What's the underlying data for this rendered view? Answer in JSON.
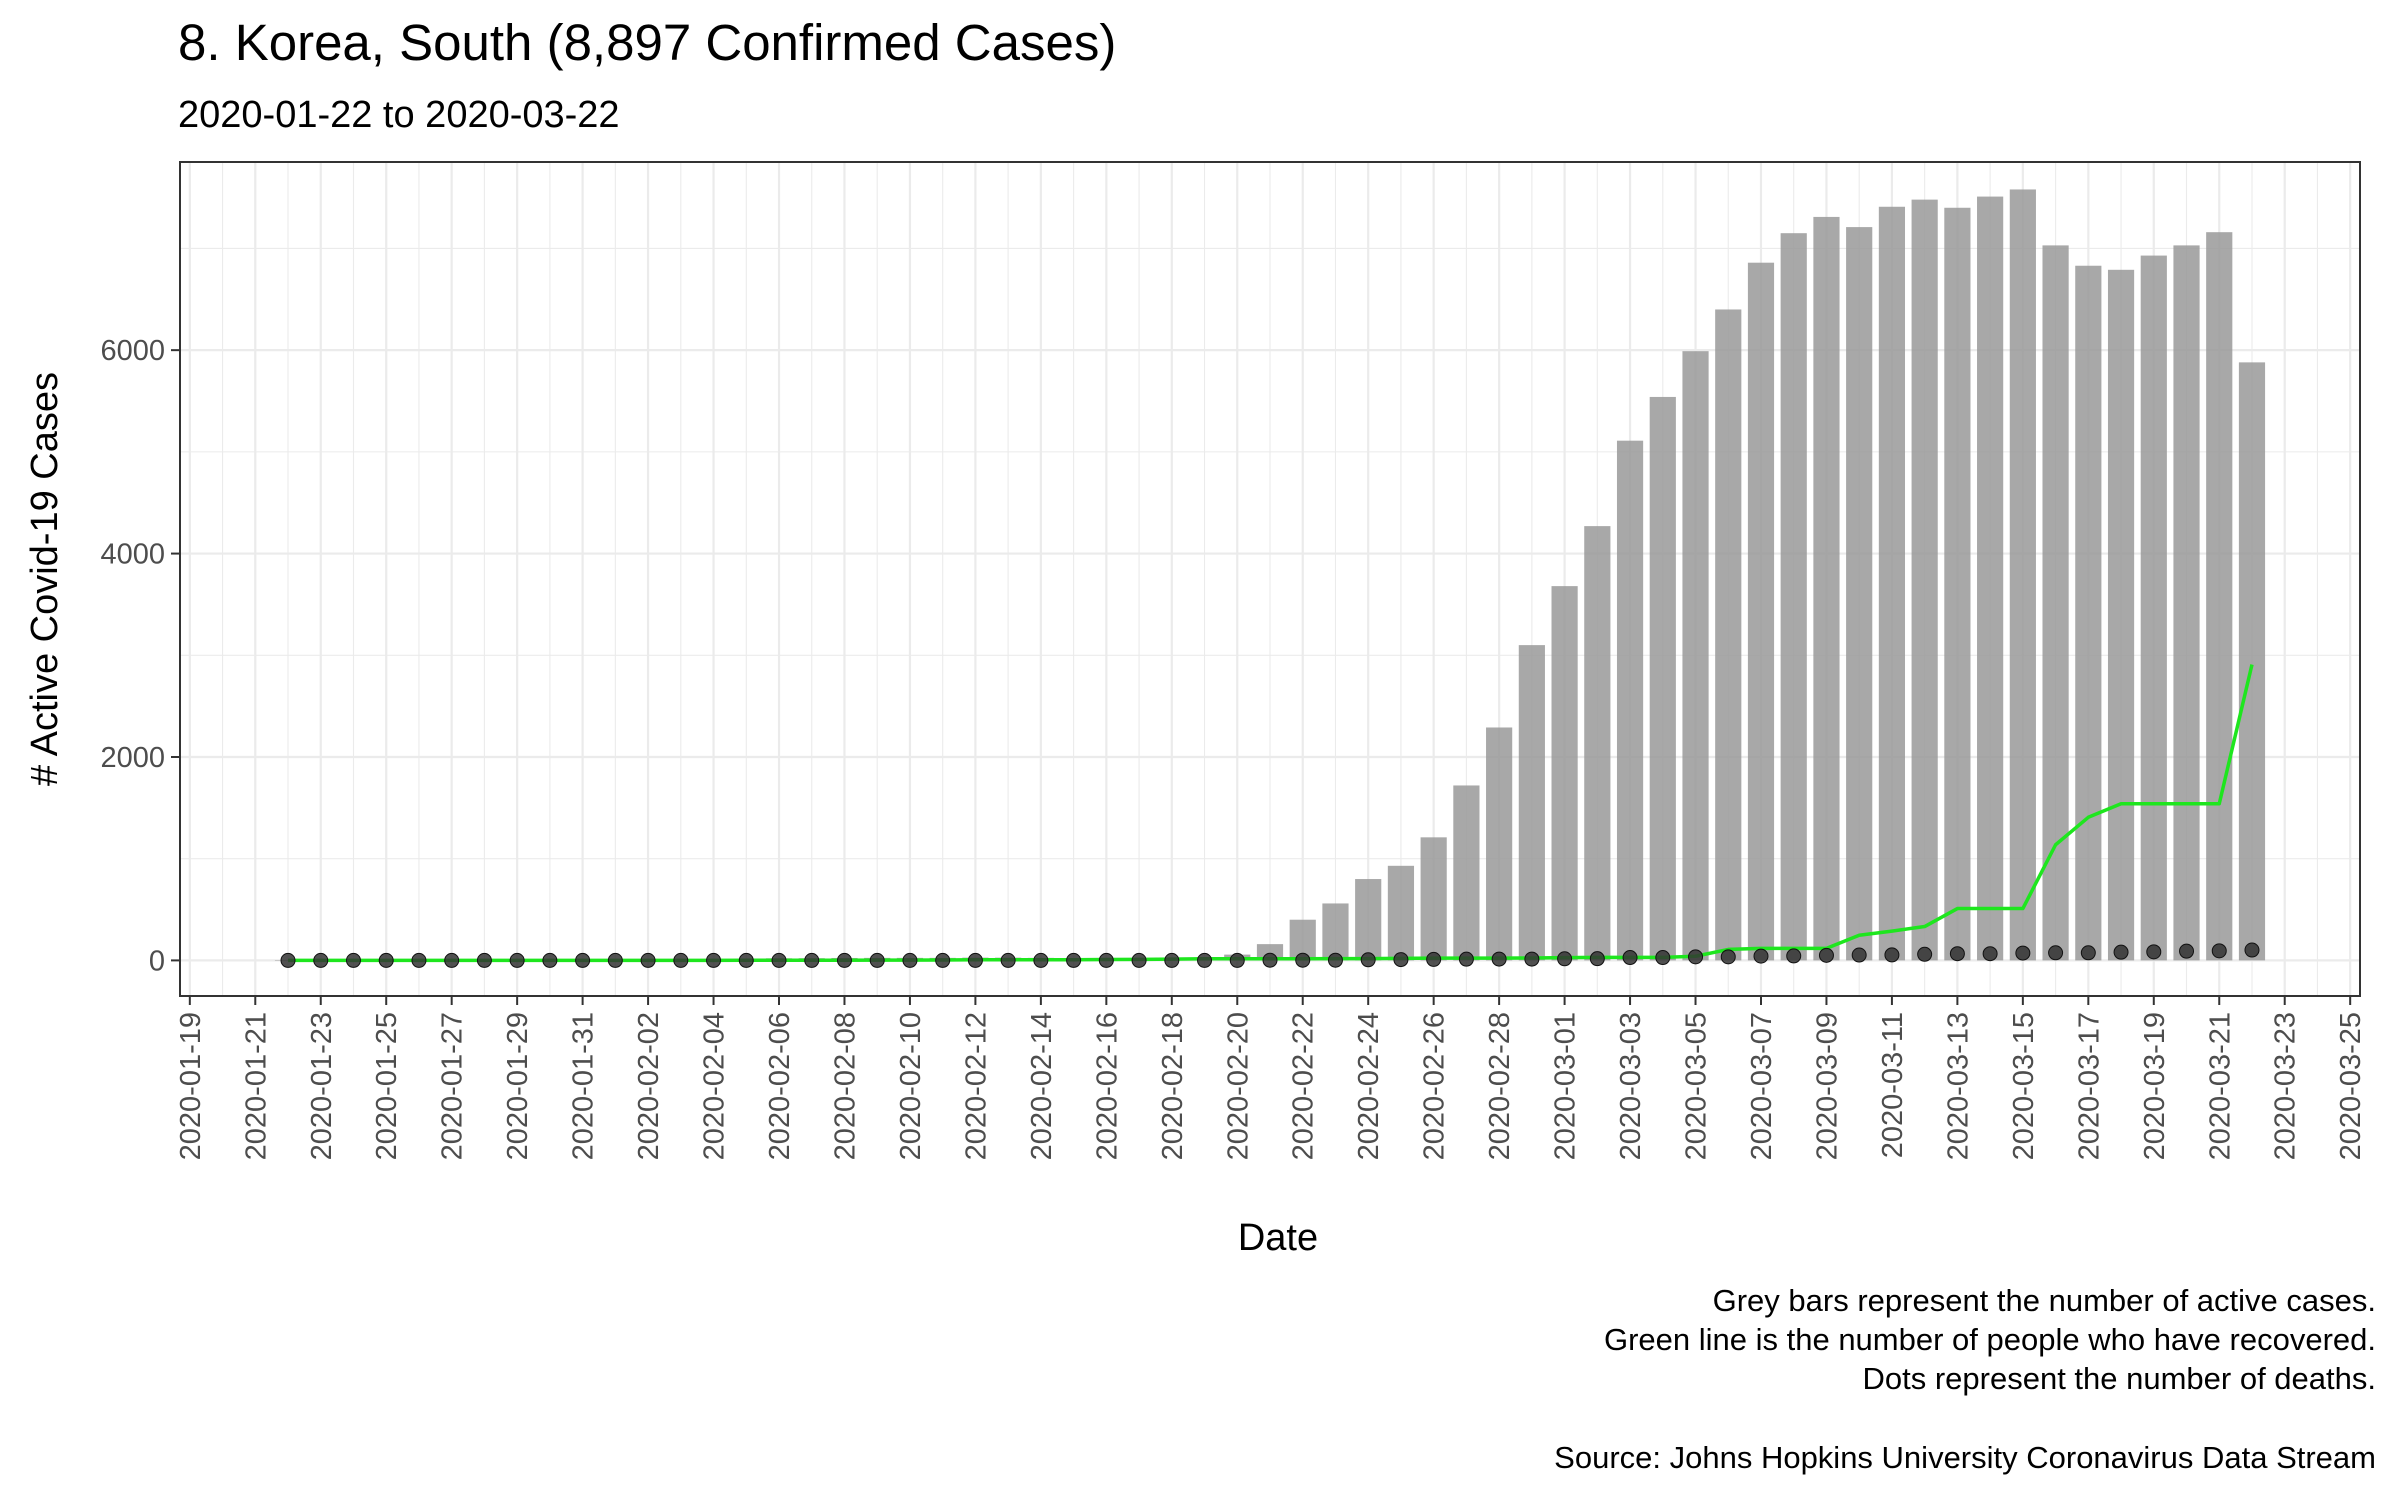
{
  "chart_data": {
    "type": "bar",
    "title": "8. Korea, South (8,897 Confirmed Cases)",
    "subtitle": "2020-01-22 to 2020-03-22",
    "xlabel": "Date",
    "ylabel": "# Active Covid-19 Cases",
    "ylim": [
      -350,
      7850
    ],
    "yticks": [
      0,
      2000,
      4000,
      6000
    ],
    "xlim": [
      "2020-01-19",
      "2020-03-25"
    ],
    "xticks": [
      "2020-01-19",
      "2020-01-21",
      "2020-01-23",
      "2020-01-25",
      "2020-01-27",
      "2020-01-29",
      "2020-01-31",
      "2020-02-02",
      "2020-02-04",
      "2020-02-06",
      "2020-02-08",
      "2020-02-10",
      "2020-02-12",
      "2020-02-14",
      "2020-02-16",
      "2020-02-18",
      "2020-02-20",
      "2020-02-22",
      "2020-02-24",
      "2020-02-26",
      "2020-02-28",
      "2020-03-01",
      "2020-03-03",
      "2020-03-05",
      "2020-03-07",
      "2020-03-09",
      "2020-03-11",
      "2020-03-13",
      "2020-03-15",
      "2020-03-17",
      "2020-03-19",
      "2020-03-21",
      "2020-03-23",
      "2020-03-25"
    ],
    "grid": true,
    "start_date": "2020-01-22",
    "series": [
      {
        "name": "Grey bars represent the number of active cases.",
        "mark": "bar",
        "color": "#999999",
        "values": [
          1,
          1,
          2,
          2,
          3,
          4,
          4,
          4,
          10,
          11,
          11,
          12,
          14,
          15,
          15,
          21,
          22,
          24,
          25,
          25,
          25,
          27,
          27,
          25,
          19,
          14,
          13,
          14,
          21,
          57,
          160,
          400,
          560,
          800,
          930,
          1210,
          1720,
          2290,
          3100,
          3680,
          4270,
          5110,
          5540,
          5990,
          6400,
          6860,
          7150,
          7310,
          7210,
          7410,
          7480,
          7400,
          7510,
          7580,
          7030,
          6830,
          6790,
          6930,
          7030,
          7160,
          5880
        ]
      },
      {
        "name": "Green line is the number of people who have recovered.",
        "mark": "line",
        "color": "#1ee61e",
        "values": [
          0,
          0,
          0,
          0,
          0,
          0,
          0,
          0,
          0,
          0,
          0,
          0,
          0,
          0,
          1,
          1,
          2,
          2,
          3,
          3,
          4,
          6,
          7,
          7,
          7,
          9,
          10,
          12,
          16,
          16,
          16,
          16,
          18,
          18,
          20,
          22,
          22,
          22,
          24,
          27,
          30,
          30,
          30,
          41,
          108,
          118,
          118,
          118,
          247,
          288,
          333,
          510,
          510,
          510,
          1137,
          1407,
          1540,
          1540,
          1540,
          1540,
          2909
        ]
      },
      {
        "name": "Dots represent the number of deaths.",
        "mark": "scatter",
        "color": "#333333",
        "values": [
          0,
          0,
          0,
          0,
          0,
          0,
          0,
          0,
          0,
          0,
          0,
          0,
          0,
          0,
          0,
          0,
          0,
          0,
          0,
          0,
          0,
          0,
          0,
          0,
          0,
          0,
          0,
          0,
          0,
          0,
          2,
          2,
          2,
          6,
          8,
          10,
          12,
          13,
          13,
          16,
          17,
          28,
          28,
          35,
          35,
          42,
          44,
          50,
          53,
          54,
          60,
          66,
          66,
          72,
          75,
          75,
          81,
          84,
          91,
          94,
          102
        ]
      }
    ]
  },
  "caption": {
    "line1": "Grey bars represent the number of active cases.",
    "line2": "Green line is the number of people who have recovered.",
    "line3": "Dots represent the number of deaths.",
    "source": "Source: Johns Hopkins University Coronavirus Data Stream"
  }
}
